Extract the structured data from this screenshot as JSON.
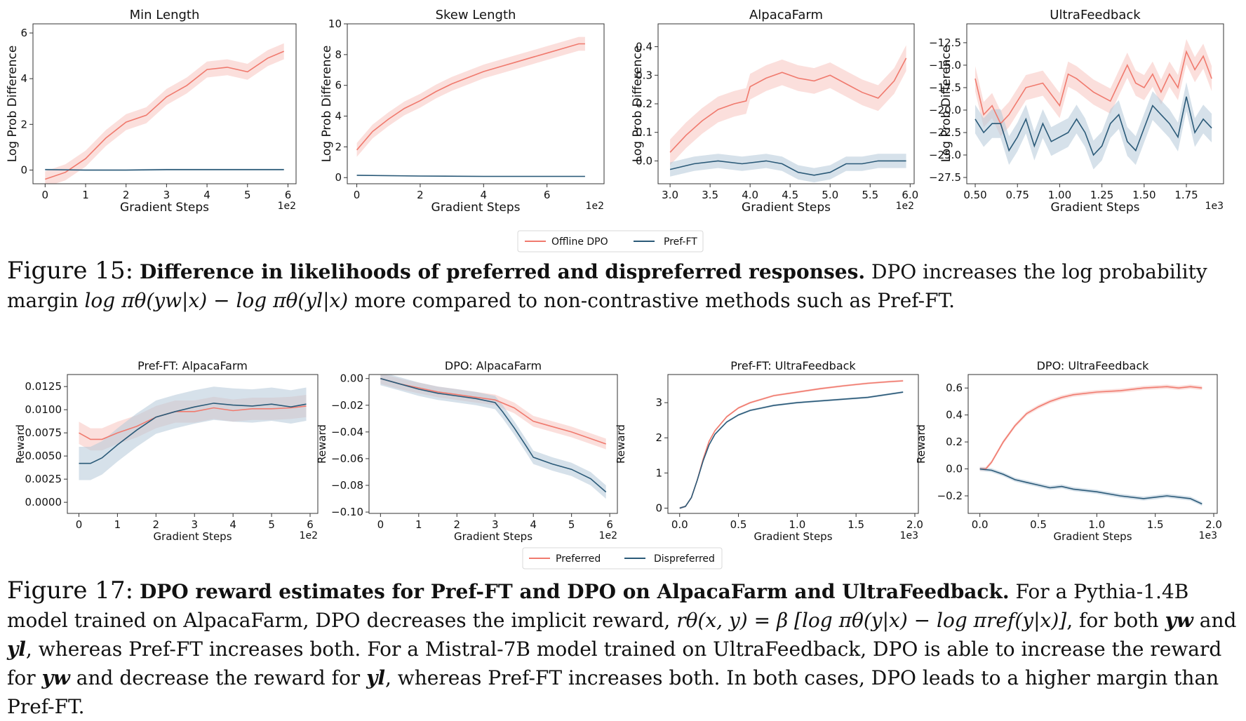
{
  "colors": {
    "red": "#f07a6e",
    "red_band": "#f8c4bf",
    "blue": "#2b5a78",
    "blue_band": "#b4c8d8"
  },
  "figure15": {
    "legend": [
      "Offline DPO",
      "Pref-FT"
    ],
    "caption_label": "Figure 15:",
    "caption_bold": "Difference in likelihoods of preferred and dispreferred responses.",
    "caption_text1": " DPO increases the log probability margin ",
    "caption_math": "log πθ(yw|x) − log πθ(yl|x)",
    "caption_text2": " more compared to non-contrastive methods such as Pref-FT."
  },
  "figure17": {
    "legend": [
      "Preferred",
      "Dispreferred"
    ],
    "caption_label": "Figure 17:",
    "caption_bold": "DPO reward estimates for Pref-FT and DPO on AlpacaFarm and UltraFeedback.",
    "caption_text1": " For a Pythia-1.4B model trained on AlpacaFarm, DPO decreases the implicit reward, ",
    "caption_math1": "rθ(x, y) = β [log πθ(y|x) − log πref(y|x)]",
    "caption_text2": ", for both ",
    "caption_math2": "yw",
    "caption_text3": " and ",
    "caption_math3": "yl",
    "caption_text4": ", whereas Pref-FT increases both. For a Mistral-7B model trained on UltraFeedback, DPO is able to increase the reward for ",
    "caption_math4": "yw",
    "caption_text5": " and decrease the reward for ",
    "caption_math5": "yl",
    "caption_text6": ", whereas Pref-FT increases both. In both cases, DPO leads to a higher margin than Pref-FT."
  },
  "chart_data": [
    {
      "type": "line",
      "title": "Min Length",
      "xlabel": "Gradient Steps",
      "ylabel": "Log Prob Difference",
      "x_multiplier": "1e2",
      "xlim": [
        -0.3,
        6.2
      ],
      "ylim": [
        -0.6,
        6.4
      ],
      "xticks": [
        0,
        1,
        2,
        3,
        4,
        5,
        6
      ],
      "yticks": [
        0,
        2,
        4,
        6
      ],
      "x_tick_labels": [
        "0",
        "1",
        "2",
        "3",
        "4",
        "5",
        "6"
      ],
      "y_tick_labels": [
        "0",
        "2",
        "4",
        "6"
      ],
      "series": [
        {
          "name": "Offline DPO",
          "x": [
            0,
            0.5,
            1,
            1.5,
            2,
            2.5,
            3,
            3.5,
            4,
            4.5,
            5,
            5.5,
            5.9
          ],
          "y": [
            -0.4,
            -0.1,
            0.5,
            1.4,
            2.1,
            2.4,
            3.2,
            3.7,
            4.4,
            4.5,
            4.3,
            4.9,
            5.2
          ],
          "band": 0.35
        },
        {
          "name": "Pref-FT",
          "x": [
            0,
            1,
            2,
            3,
            4,
            5,
            5.9
          ],
          "y": [
            0.02,
            0.0,
            0.0,
            0.02,
            0.02,
            0.02,
            0.02
          ],
          "band": 0.04
        }
      ]
    },
    {
      "type": "line",
      "title": "Skew Length",
      "xlabel": "Gradient Steps",
      "ylabel": "Log Prob Difference",
      "x_multiplier": "1e2",
      "xlim": [
        -0.3,
        7.8
      ],
      "ylim": [
        -0.4,
        10
      ],
      "xticks": [
        0,
        2,
        4,
        6
      ],
      "yticks": [
        0,
        2,
        4,
        6,
        8,
        10
      ],
      "x_tick_labels": [
        "0",
        "2",
        "4",
        "6"
      ],
      "y_tick_labels": [
        "0",
        "2",
        "4",
        "6",
        "8",
        "10"
      ],
      "series": [
        {
          "name": "Offline DPO",
          "x": [
            0,
            0.5,
            1,
            1.5,
            2,
            2.5,
            3,
            3.5,
            4,
            4.5,
            5,
            5.5,
            6,
            6.5,
            7,
            7.2
          ],
          "y": [
            1.8,
            3.0,
            3.8,
            4.5,
            5.0,
            5.6,
            6.1,
            6.5,
            6.9,
            7.2,
            7.5,
            7.8,
            8.1,
            8.4,
            8.7,
            8.7
          ],
          "band": 0.45
        },
        {
          "name": "Pref-FT",
          "x": [
            0,
            2,
            4,
            6,
            7.2
          ],
          "y": [
            0.15,
            0.1,
            0.08,
            0.08,
            0.08
          ],
          "band": 0.04
        }
      ]
    },
    {
      "type": "line",
      "title": "AlpacaFarm",
      "xlabel": "Gradient Steps",
      "ylabel": "Log Prob Difference",
      "x_multiplier": "1e2",
      "xlim": [
        2.85,
        6.05
      ],
      "ylim": [
        -0.08,
        0.48
      ],
      "xticks": [
        3.0,
        3.5,
        4.0,
        4.5,
        5.0,
        5.5,
        6.0
      ],
      "yticks": [
        0.0,
        0.1,
        0.2,
        0.3,
        0.4
      ],
      "x_tick_labels": [
        "3.0",
        "3.5",
        "4.0",
        "4.5",
        "5.0",
        "5.5",
        "6.0"
      ],
      "y_tick_labels": [
        "0.0",
        "0.1",
        "0.2",
        "0.3",
        "0.4"
      ],
      "series": [
        {
          "name": "Offline DPO",
          "x": [
            3.0,
            3.2,
            3.4,
            3.6,
            3.8,
            3.95,
            4.0,
            4.2,
            4.4,
            4.6,
            4.8,
            5.0,
            5.2,
            5.4,
            5.6,
            5.8,
            5.95
          ],
          "y": [
            0.03,
            0.09,
            0.14,
            0.18,
            0.2,
            0.21,
            0.26,
            0.29,
            0.31,
            0.29,
            0.28,
            0.3,
            0.27,
            0.24,
            0.22,
            0.28,
            0.36
          ],
          "band": 0.045
        },
        {
          "name": "Pref-FT",
          "x": [
            3.0,
            3.3,
            3.6,
            3.9,
            4.2,
            4.4,
            4.6,
            4.8,
            5.0,
            5.2,
            5.4,
            5.6,
            5.8,
            5.95
          ],
          "y": [
            -0.03,
            -0.01,
            0.0,
            -0.01,
            0.0,
            -0.01,
            -0.04,
            -0.05,
            -0.04,
            -0.01,
            -0.01,
            0.0,
            0.0,
            0.0
          ],
          "band": 0.025
        }
      ]
    },
    {
      "type": "line",
      "title": "UltraFeedback",
      "xlabel": "Gradient Steps",
      "ylabel": "Log Prob Difference",
      "x_multiplier": "1e3",
      "xlim": [
        0.45,
        1.97
      ],
      "ylim": [
        -28.2,
        -10.4
      ],
      "xticks": [
        0.5,
        0.75,
        1.0,
        1.25,
        1.5,
        1.75
      ],
      "yticks": [
        -27.5,
        -25.0,
        -22.5,
        -20.0,
        -17.5,
        -15.0,
        -12.5
      ],
      "x_tick_labels": [
        "0.50",
        "0.75",
        "1.00",
        "1.25",
        "1.50",
        "1.75"
      ],
      "y_tick_labels": [
        "−27.5",
        "−25.0",
        "−22.5",
        "−20.0",
        "−17.5",
        "−15.0",
        "−12.5"
      ],
      "series": [
        {
          "name": "Offline DPO",
          "x": [
            0.5,
            0.55,
            0.6,
            0.65,
            0.7,
            0.8,
            0.9,
            1.0,
            1.05,
            1.1,
            1.2,
            1.3,
            1.35,
            1.4,
            1.45,
            1.5,
            1.55,
            1.6,
            1.65,
            1.7,
            1.75,
            1.8,
            1.85,
            1.9
          ],
          "y": [
            -16.5,
            -20.5,
            -19.5,
            -21.5,
            -20.5,
            -17.5,
            -17.0,
            -19.5,
            -16.0,
            -16.5,
            -18.0,
            -19.0,
            -17.0,
            -15.0,
            -17.0,
            -17.5,
            -16.0,
            -18.0,
            -16.0,
            -17.5,
            -13.5,
            -15.5,
            -14.0,
            -16.5
          ],
          "band": 1.4
        },
        {
          "name": "Pref-FT",
          "x": [
            0.5,
            0.55,
            0.6,
            0.65,
            0.7,
            0.75,
            0.8,
            0.85,
            0.9,
            0.95,
            1.0,
            1.05,
            1.1,
            1.15,
            1.2,
            1.25,
            1.3,
            1.35,
            1.4,
            1.45,
            1.5,
            1.55,
            1.6,
            1.65,
            1.7,
            1.75,
            1.8,
            1.85,
            1.9
          ],
          "y": [
            -21.0,
            -22.5,
            -21.5,
            -21.5,
            -24.5,
            -23.0,
            -21.0,
            -24.0,
            -21.5,
            -23.5,
            -23.0,
            -22.5,
            -21.0,
            -22.5,
            -25.0,
            -24.0,
            -21.5,
            -20.5,
            -23.5,
            -24.5,
            -22.0,
            -19.5,
            -20.5,
            -21.5,
            -23.0,
            -18.5,
            -22.5,
            -21.0,
            -22.0
          ],
          "band": 1.6
        }
      ]
    },
    {
      "type": "line",
      "title": "Pref-FT: AlpacaFarm",
      "xlabel": "Gradient Steps",
      "ylabel": "Reward",
      "x_multiplier": "1e2",
      "xlim": [
        -0.3,
        6.2
      ],
      "ylim": [
        -0.0012,
        0.0138
      ],
      "xticks": [
        0,
        1,
        2,
        3,
        4,
        5,
        6
      ],
      "yticks": [
        0.0,
        0.0025,
        0.005,
        0.0075,
        0.01,
        0.0125
      ],
      "x_tick_labels": [
        "0",
        "1",
        "2",
        "3",
        "4",
        "5",
        "6"
      ],
      "y_tick_labels": [
        "0.0000",
        "0.0025",
        "0.0050",
        "0.0075",
        "0.0100",
        "0.0125"
      ],
      "series": [
        {
          "name": "Preferred",
          "x": [
            0,
            0.3,
            0.6,
            1,
            1.5,
            2,
            2.5,
            3,
            3.5,
            4,
            4.5,
            5,
            5.5,
            5.9
          ],
          "y": [
            0.0075,
            0.0068,
            0.0068,
            0.0075,
            0.0082,
            0.0092,
            0.0098,
            0.0098,
            0.0102,
            0.0099,
            0.0101,
            0.0101,
            0.0102,
            0.0104
          ],
          "band": 0.0012
        },
        {
          "name": "Dispreferred",
          "x": [
            0,
            0.3,
            0.6,
            1,
            1.5,
            2,
            2.5,
            3,
            3.5,
            4,
            4.5,
            5,
            5.5,
            5.9
          ],
          "y": [
            0.0042,
            0.0042,
            0.0048,
            0.0062,
            0.0078,
            0.0092,
            0.0098,
            0.0103,
            0.0107,
            0.0105,
            0.0104,
            0.0106,
            0.0103,
            0.0106
          ],
          "band": 0.0018
        }
      ]
    },
    {
      "type": "line",
      "title": "DPO: AlpacaFarm",
      "xlabel": "Gradient Steps",
      "ylabel": "Reward",
      "x_multiplier": "1e2",
      "xlim": [
        -0.3,
        6.2
      ],
      "ylim": [
        -0.101,
        0.003
      ],
      "xticks": [
        0,
        1,
        2,
        3,
        4,
        5,
        6
      ],
      "yticks": [
        0.0,
        -0.02,
        -0.04,
        -0.06,
        -0.08,
        -0.1
      ],
      "x_tick_labels": [
        "0",
        "1",
        "2",
        "3",
        "4",
        "5",
        "6"
      ],
      "y_tick_labels": [
        "0.00",
        "−0.02",
        "−0.04",
        "−0.06",
        "−0.08",
        "−0.10"
      ],
      "series": [
        {
          "name": "Preferred",
          "x": [
            0,
            0.5,
            1,
            1.5,
            2,
            2.5,
            3,
            3.5,
            4,
            4.5,
            5,
            5.5,
            5.9
          ],
          "y": [
            0.0,
            -0.004,
            -0.007,
            -0.01,
            -0.012,
            -0.014,
            -0.016,
            -0.022,
            -0.032,
            -0.036,
            -0.04,
            -0.045,
            -0.049
          ],
          "band": 0.004
        },
        {
          "name": "Dispreferred",
          "x": [
            0,
            0.5,
            1,
            1.5,
            2,
            2.5,
            3,
            3.2,
            3.5,
            3.8,
            4,
            4.5,
            5,
            5.5,
            5.9
          ],
          "y": [
            0.0,
            -0.004,
            -0.008,
            -0.011,
            -0.013,
            -0.015,
            -0.018,
            -0.025,
            -0.037,
            -0.05,
            -0.059,
            -0.064,
            -0.068,
            -0.075,
            -0.085
          ],
          "band": 0.005
        }
      ]
    },
    {
      "type": "line",
      "title": "Pref-FT: UltraFeedback",
      "xlabel": "Gradient Steps",
      "ylabel": "Reward",
      "x_multiplier": "1e3",
      "xlim": [
        -0.1,
        2.03
      ],
      "ylim": [
        -0.15,
        3.8
      ],
      "xticks": [
        0.0,
        0.5,
        1.0,
        1.5,
        2.0
      ],
      "yticks": [
        0,
        1,
        2,
        3
      ],
      "x_tick_labels": [
        "0.0",
        "0.5",
        "1.0",
        "1.5",
        "2.0"
      ],
      "y_tick_labels": [
        "0",
        "1",
        "2",
        "3"
      ],
      "series": [
        {
          "name": "Preferred",
          "x": [
            0,
            0.05,
            0.1,
            0.15,
            0.2,
            0.25,
            0.3,
            0.4,
            0.5,
            0.6,
            0.7,
            0.8,
            1.0,
            1.2,
            1.4,
            1.6,
            1.8,
            1.9
          ],
          "y": [
            0,
            0.05,
            0.3,
            0.8,
            1.4,
            1.9,
            2.2,
            2.6,
            2.85,
            3.0,
            3.1,
            3.2,
            3.3,
            3.4,
            3.48,
            3.55,
            3.6,
            3.62
          ],
          "band": 0.03
        },
        {
          "name": "Dispreferred",
          "x": [
            0,
            0.05,
            0.1,
            0.15,
            0.2,
            0.25,
            0.3,
            0.4,
            0.5,
            0.6,
            0.7,
            0.8,
            1.0,
            1.2,
            1.4,
            1.6,
            1.8,
            1.9
          ],
          "y": [
            0,
            0.05,
            0.3,
            0.8,
            1.35,
            1.8,
            2.1,
            2.45,
            2.65,
            2.78,
            2.85,
            2.92,
            3.0,
            3.05,
            3.1,
            3.15,
            3.25,
            3.3
          ],
          "band": 0.03
        }
      ]
    },
    {
      "type": "line",
      "title": "DPO: UltraFeedback",
      "xlabel": "Gradient Steps",
      "ylabel": "Reward",
      "x_multiplier": "1e3",
      "xlim": [
        -0.1,
        2.03
      ],
      "ylim": [
        -0.33,
        0.7
      ],
      "xticks": [
        0.0,
        0.5,
        1.0,
        1.5,
        2.0
      ],
      "yticks": [
        -0.2,
        0.0,
        0.2,
        0.4,
        0.6
      ],
      "x_tick_labels": [
        "0.0",
        "0.5",
        "1.0",
        "1.5",
        "2.0"
      ],
      "y_tick_labels": [
        "−0.2",
        "0.0",
        "0.2",
        "0.4",
        "0.6"
      ],
      "series": [
        {
          "name": "Preferred",
          "x": [
            0,
            0.05,
            0.1,
            0.2,
            0.3,
            0.4,
            0.5,
            0.6,
            0.7,
            0.8,
            1.0,
            1.2,
            1.4,
            1.6,
            1.7,
            1.8,
            1.9
          ],
          "y": [
            0,
            0.0,
            0.05,
            0.2,
            0.32,
            0.41,
            0.46,
            0.5,
            0.53,
            0.55,
            0.57,
            0.58,
            0.6,
            0.61,
            0.6,
            0.61,
            0.6
          ],
          "band": 0.015
        },
        {
          "name": "Dispreferred",
          "x": [
            0,
            0.1,
            0.2,
            0.3,
            0.4,
            0.5,
            0.6,
            0.7,
            0.8,
            1.0,
            1.2,
            1.4,
            1.6,
            1.7,
            1.8,
            1.9
          ],
          "y": [
            0,
            -0.01,
            -0.04,
            -0.08,
            -0.1,
            -0.12,
            -0.14,
            -0.13,
            -0.15,
            -0.17,
            -0.2,
            -0.22,
            -0.2,
            -0.21,
            -0.22,
            -0.26
          ],
          "band": 0.015
        }
      ]
    }
  ]
}
